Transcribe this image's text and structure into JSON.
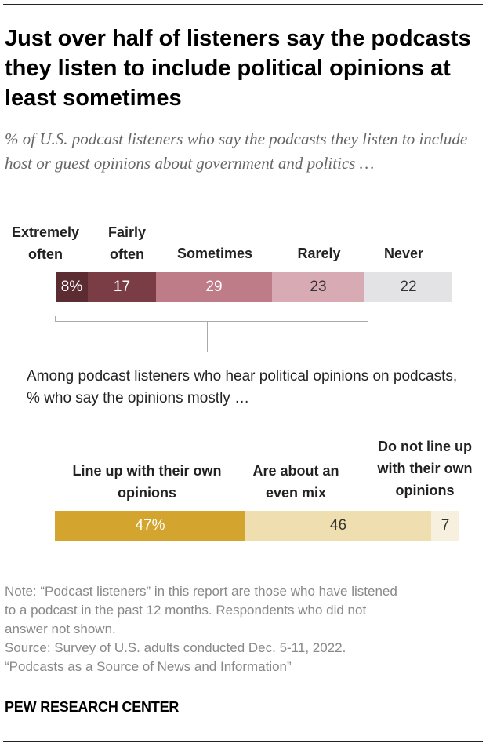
{
  "header": {
    "title": "Just over half of listeners say the podcasts they listen to include political opinions at least sometimes",
    "subtitle": "% of U.S. podcast listeners who say the podcasts they listen to include host or guest opinions about government and politics …"
  },
  "chart_data": [
    {
      "type": "bar",
      "orientation": "horizontal-stacked",
      "categories": [
        {
          "label": "Extremely often",
          "value": 8,
          "value_label": "8%",
          "color": "#5c2c33"
        },
        {
          "label": "Fairly often",
          "value": 17,
          "value_label": "17",
          "color": "#7b3d45"
        },
        {
          "label": "Sometimes",
          "value": 29,
          "value_label": "29",
          "color": "#be7c88"
        },
        {
          "label": "Rarely",
          "value": 23,
          "value_label": "23",
          "color": "#d8aab3"
        },
        {
          "label": "Never",
          "value": 22,
          "value_label": "22",
          "color": "#e3e3e5"
        }
      ],
      "value_colors": [
        "#ffffff",
        "#ffffff",
        "#ffffff",
        "#333333",
        "#333333"
      ]
    },
    {
      "type": "bar",
      "orientation": "horizontal-stacked",
      "intro": "Among podcast listeners who hear political opinions on podcasts, % who say the opinions mostly …",
      "categories": [
        {
          "label": "Line up with their own opinions",
          "value": 47,
          "value_label": "47%",
          "color": "#d3a42e"
        },
        {
          "label": "Are about an even mix",
          "value": 46,
          "value_label": "46",
          "color": "#efdfb0"
        },
        {
          "label": "Do not line up with their own opinions",
          "value": 7,
          "value_label": "7",
          "color": "#f7f0de"
        }
      ],
      "value_colors": [
        "#ffffff",
        "#333333",
        "#333333"
      ]
    }
  ],
  "footer": {
    "note_lines": [
      "Note: “Podcast listeners” in this report are those who have listened",
      "to a podcast in the past 12 months. Respondents who did not",
      "answer not shown.",
      "Source: Survey of U.S. adults conducted Dec. 5-11, 2022.",
      "“Podcasts as a Source of News and Information”"
    ],
    "brand": "PEW RESEARCH CENTER"
  }
}
